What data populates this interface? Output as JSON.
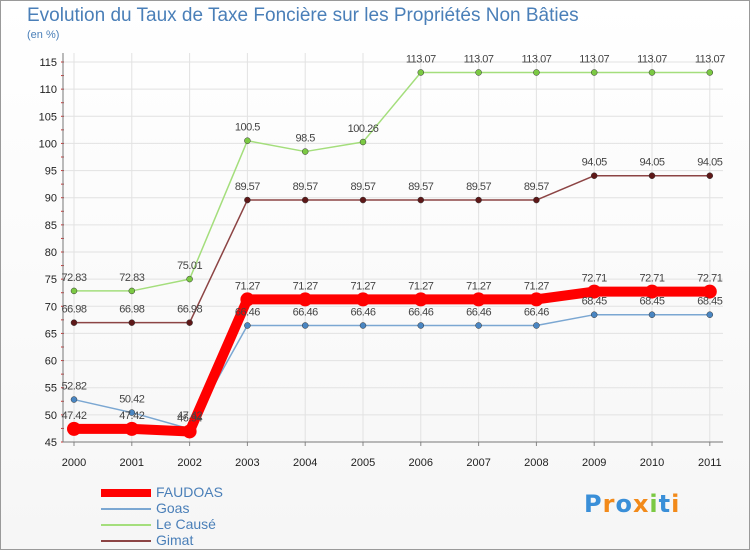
{
  "chart_data": {
    "type": "line",
    "title": "Evolution du Taux de Taxe Foncière sur les Propriétés Non Bâties",
    "ylabel": "(en %)",
    "xlabel": "",
    "categories": [
      "2000",
      "2001",
      "2002",
      "2003",
      "2004",
      "2005",
      "2006",
      "2007",
      "2008",
      "2009",
      "2010",
      "2011"
    ],
    "ylim": [
      45,
      115
    ],
    "yticks": [
      45,
      50,
      55,
      60,
      65,
      70,
      75,
      80,
      85,
      90,
      95,
      100,
      105,
      110,
      115
    ],
    "grid": true,
    "legend": "bottom-left",
    "series": [
      {
        "name": "Le Causé",
        "color": "#a4de7c",
        "markerColor": "#7bc943",
        "values": [
          72.83,
          72.83,
          75.01,
          100.5,
          98.5,
          100.26,
          113.07,
          113.07,
          113.07,
          113.07,
          113.07,
          113.07
        ],
        "labels": [
          "72.83",
          "72.83",
          "75.01",
          "100.5",
          "98.5",
          "100.26",
          "113.07",
          "113.07",
          "113.07",
          "113.07",
          "113.07",
          "113.07"
        ]
      },
      {
        "name": "Gimat",
        "color": "#8c4444",
        "markerColor": "#5e1818",
        "values": [
          66.98,
          66.98,
          66.98,
          89.57,
          89.57,
          89.57,
          89.57,
          89.57,
          89.57,
          94.05,
          94.05,
          94.05
        ],
        "labels": [
          "66.98",
          "66.98",
          "66.98",
          "89.57",
          "89.57",
          "89.57",
          "89.57",
          "89.57",
          "89.57",
          "94.05",
          "94.05",
          "94.05"
        ]
      },
      {
        "name": "Goas",
        "color": "#7ba7d2",
        "markerColor": "#4a86c2",
        "values": [
          52.82,
          50.42,
          47.42,
          66.46,
          66.46,
          66.46,
          66.46,
          66.46,
          66.46,
          68.45,
          68.45,
          68.45
        ],
        "labels": [
          "52.82",
          "50.42",
          "47.42",
          "66.46",
          "66.46",
          "66.46",
          "66.46",
          "66.46",
          "66.46",
          "68.45",
          "68.45",
          "68.45"
        ]
      },
      {
        "name": "FAUDOAS",
        "color": "#ff0000",
        "markerColor": "#ff0000",
        "values": [
          47.42,
          47.42,
          46.94,
          71.27,
          71.27,
          71.27,
          71.27,
          71.27,
          71.27,
          72.71,
          72.71,
          72.71
        ],
        "labels": [
          "47.42",
          "47.42",
          "46.94",
          "71.27",
          "71.27",
          "71.27",
          "71.27",
          "71.27",
          "71.27",
          "72.71",
          "72.71",
          "72.71"
        ]
      }
    ]
  },
  "legend": {
    "items": [
      {
        "name": "FAUDOAS",
        "color": "#ff0000"
      },
      {
        "name": "Goas",
        "color": "#7ba7d2"
      },
      {
        "name": "Le Causé",
        "color": "#a4de7c"
      },
      {
        "name": "Gimat",
        "color": "#8c4444"
      }
    ]
  },
  "logo": {
    "text": "Proxiti",
    "colors": [
      "#3a8fd8",
      "#f28a1a",
      "#3a8fd8",
      "#f28a1a",
      "#7bc943",
      "#3a8fd8",
      "#f28a1a"
    ]
  }
}
